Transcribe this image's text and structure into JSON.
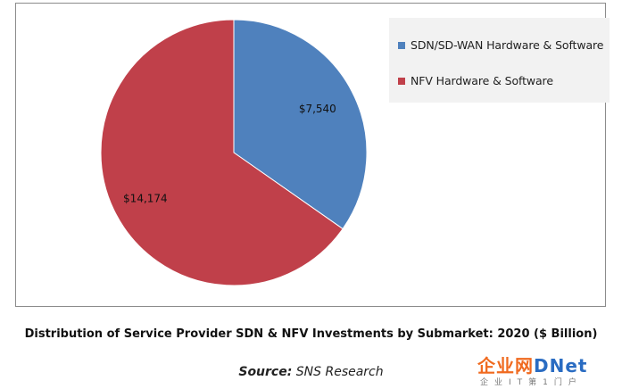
{
  "chart_data": {
    "type": "pie",
    "categories": [
      "SDN/SD-WAN Hardware & Software",
      "NFV Hardware & Software"
    ],
    "values": [
      7540,
      14174
    ],
    "data_labels": [
      "$7,540",
      "$14,174"
    ],
    "colors": [
      "#4f81bd",
      "#c0404a"
    ],
    "legend": "top-right",
    "title": "Distribution of Service Provider SDN & NFV Investments by Submarket: 2020 ($ Billion)"
  },
  "caption": {
    "title": "Distribution of Service Provider SDN & NFV Investments by Submarket: 2020 ($ Billion)",
    "source_lead": "Source:",
    "source_rest": "SNS Research"
  },
  "watermark": {
    "main_cn": "企业网",
    "main_d": "D",
    "main_net": "Net",
    "sub": "企业IT第1门户"
  }
}
